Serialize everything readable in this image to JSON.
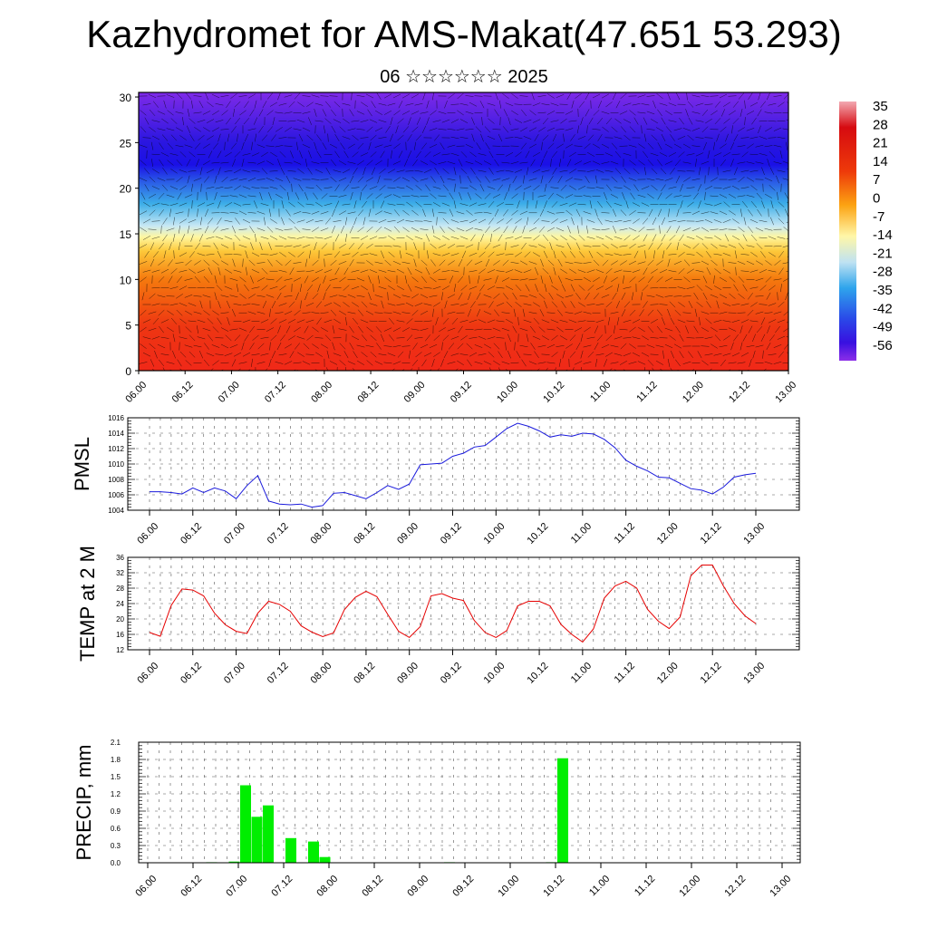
{
  "header": {
    "title": "Kazhydromet for AMS-Makat(47.651 53.293)",
    "subtitle": "06 ☆☆☆☆☆☆ 2025"
  },
  "chart_data": [
    {
      "type": "heatmap",
      "title": "",
      "xlabel": "",
      "ylabel": "",
      "x_ticks": [
        "06.00",
        "06.12",
        "07.00",
        "07.12",
        "08.00",
        "08.12",
        "09.00",
        "09.12",
        "10.00",
        "10.12",
        "11.00",
        "11.12",
        "12.00",
        "12.12",
        "13.00"
      ],
      "y_ticks": [
        0,
        5,
        10,
        15,
        20,
        25,
        30
      ],
      "ylim": [
        0,
        30.5
      ],
      "colorbar_labels": [
        35,
        28,
        21,
        14,
        7,
        0,
        -7,
        -14,
        -21,
        -28,
        -35,
        -42,
        -49,
        -56
      ],
      "colorbar_range": [
        -60,
        38
      ],
      "temperature_profile": [
        {
          "z": 0,
          "value": 26
        },
        {
          "z": 5,
          "value": 20
        },
        {
          "z": 10,
          "value": 10
        },
        {
          "z": 13,
          "value": 2
        },
        {
          "z": 15.5,
          "value": -12
        },
        {
          "z": 18,
          "value": -30
        },
        {
          "z": 21,
          "value": -48
        },
        {
          "z": 24,
          "value": -60
        },
        {
          "z": 27,
          "value": -54
        },
        {
          "z": 30.5,
          "value": -45
        }
      ],
      "overlay": "wind vectors"
    },
    {
      "type": "line",
      "ylabel": "PMSL",
      "ylim": [
        1004,
        1016
      ],
      "y_ticks": [
        1004,
        1006,
        1008,
        1010,
        1012,
        1014,
        1016
      ],
      "x_ticks": [
        "06.00",
        "06.12",
        "07.00",
        "07.12",
        "08.00",
        "08.12",
        "09.00",
        "09.12",
        "10.00",
        "10.12",
        "11.00",
        "11.12",
        "12.00",
        "12.12",
        "13.00"
      ],
      "x_hours": [
        0,
        3,
        6,
        9,
        12,
        15,
        18,
        21,
        24,
        27,
        30,
        33,
        36,
        39,
        42,
        45,
        48,
        51,
        54,
        57,
        60,
        63,
        66,
        69,
        72,
        75,
        78,
        81,
        84,
        87,
        90,
        93,
        96,
        99,
        102,
        105,
        108,
        111,
        114,
        117,
        120,
        123,
        126,
        129,
        132,
        135,
        138,
        141,
        144,
        147,
        150,
        153,
        156,
        159,
        162,
        165,
        168
      ],
      "values": [
        1006.4,
        1006.4,
        1006.3,
        1006.1,
        1006.9,
        1006.3,
        1006.9,
        1006.5,
        1005.5,
        1007.2,
        1008.5,
        1005.2,
        1004.8,
        1004.7,
        1004.8,
        1004.4,
        1004.6,
        1006.2,
        1006.3,
        1005.9,
        1005.5,
        1006.3,
        1007.2,
        1006.7,
        1007.4,
        1009.9,
        1010.0,
        1010.1,
        1011.0,
        1011.4,
        1012.2,
        1012.4,
        1013.5,
        1014.6,
        1015.3,
        1014.9,
        1014.3,
        1013.5,
        1013.8,
        1013.6,
        1014.0,
        1013.9,
        1013.2,
        1012.1,
        1010.5,
        1009.7,
        1009.1,
        1008.3,
        1008.2,
        1007.5,
        1006.8,
        1006.6,
        1006.1,
        1007.0,
        1008.3,
        1008.6,
        1008.8
      ],
      "color": "#1a1adc"
    },
    {
      "type": "line",
      "ylabel": "TEMP at 2 M",
      "ylim": [
        12,
        36
      ],
      "y_ticks": [
        12,
        16,
        20,
        24,
        28,
        32,
        36
      ],
      "x_ticks": [
        "06.00",
        "06.12",
        "07.00",
        "07.12",
        "08.00",
        "08.12",
        "09.00",
        "09.12",
        "10.00",
        "10.12",
        "11.00",
        "11.12",
        "12.00",
        "12.12",
        "13.00"
      ],
      "x_hours": [
        0,
        3,
        6,
        9,
        12,
        15,
        18,
        21,
        24,
        27,
        30,
        33,
        36,
        39,
        42,
        45,
        48,
        51,
        54,
        57,
        60,
        63,
        66,
        69,
        72,
        75,
        78,
        81,
        84,
        87,
        90,
        93,
        96,
        99,
        102,
        105,
        108,
        111,
        114,
        117,
        120,
        123,
        126,
        129,
        132,
        135,
        138,
        141,
        144,
        147,
        150,
        153,
        156,
        159,
        162,
        165,
        168
      ],
      "values": [
        16.5,
        15.5,
        23.5,
        27.8,
        27.5,
        26.0,
        21.5,
        18.5,
        16.8,
        16.2,
        21.5,
        24.6,
        23.8,
        22.0,
        18.2,
        16.6,
        15.4,
        16.4,
        22.4,
        25.6,
        27.2,
        25.8,
        21.2,
        16.8,
        15.2,
        18.0,
        26.0,
        26.6,
        25.4,
        24.8,
        19.6,
        16.5,
        15.2,
        17.0,
        23.4,
        24.6,
        24.6,
        23.4,
        18.6,
        16.0,
        14.0,
        17.4,
        25.4,
        28.6,
        29.8,
        28.0,
        22.5,
        19.4,
        17.5,
        20.5,
        31.2,
        34.0,
        34.0,
        28.6,
        24.0,
        20.8,
        18.8
      ],
      "color": "#e60000"
    },
    {
      "type": "bar",
      "ylabel": "PRECIP, mm",
      "ylim": [
        0,
        2.1
      ],
      "y_ticks": [
        "0.0",
        "0.3",
        "0.6",
        "0.9",
        "1.2",
        "1.5",
        "1.8",
        "2.1"
      ],
      "x_ticks": [
        "06.00",
        "06.12",
        "07.00",
        "07.12",
        "08.00",
        "08.12",
        "09.00",
        "09.12",
        "10.00",
        "10.12",
        "11.00",
        "11.12",
        "12.00",
        "12.12",
        "13.00"
      ],
      "x_hours": [
        15,
        18,
        21,
        24,
        27,
        30,
        36,
        42,
        45,
        78,
        105,
        108
      ],
      "values": [
        0.01,
        0.0,
        0.02,
        1.35,
        0.8,
        1.0,
        0.43,
        0.37,
        0.1,
        0.01,
        0.01,
        1.82
      ],
      "color": "#00ee00"
    }
  ]
}
